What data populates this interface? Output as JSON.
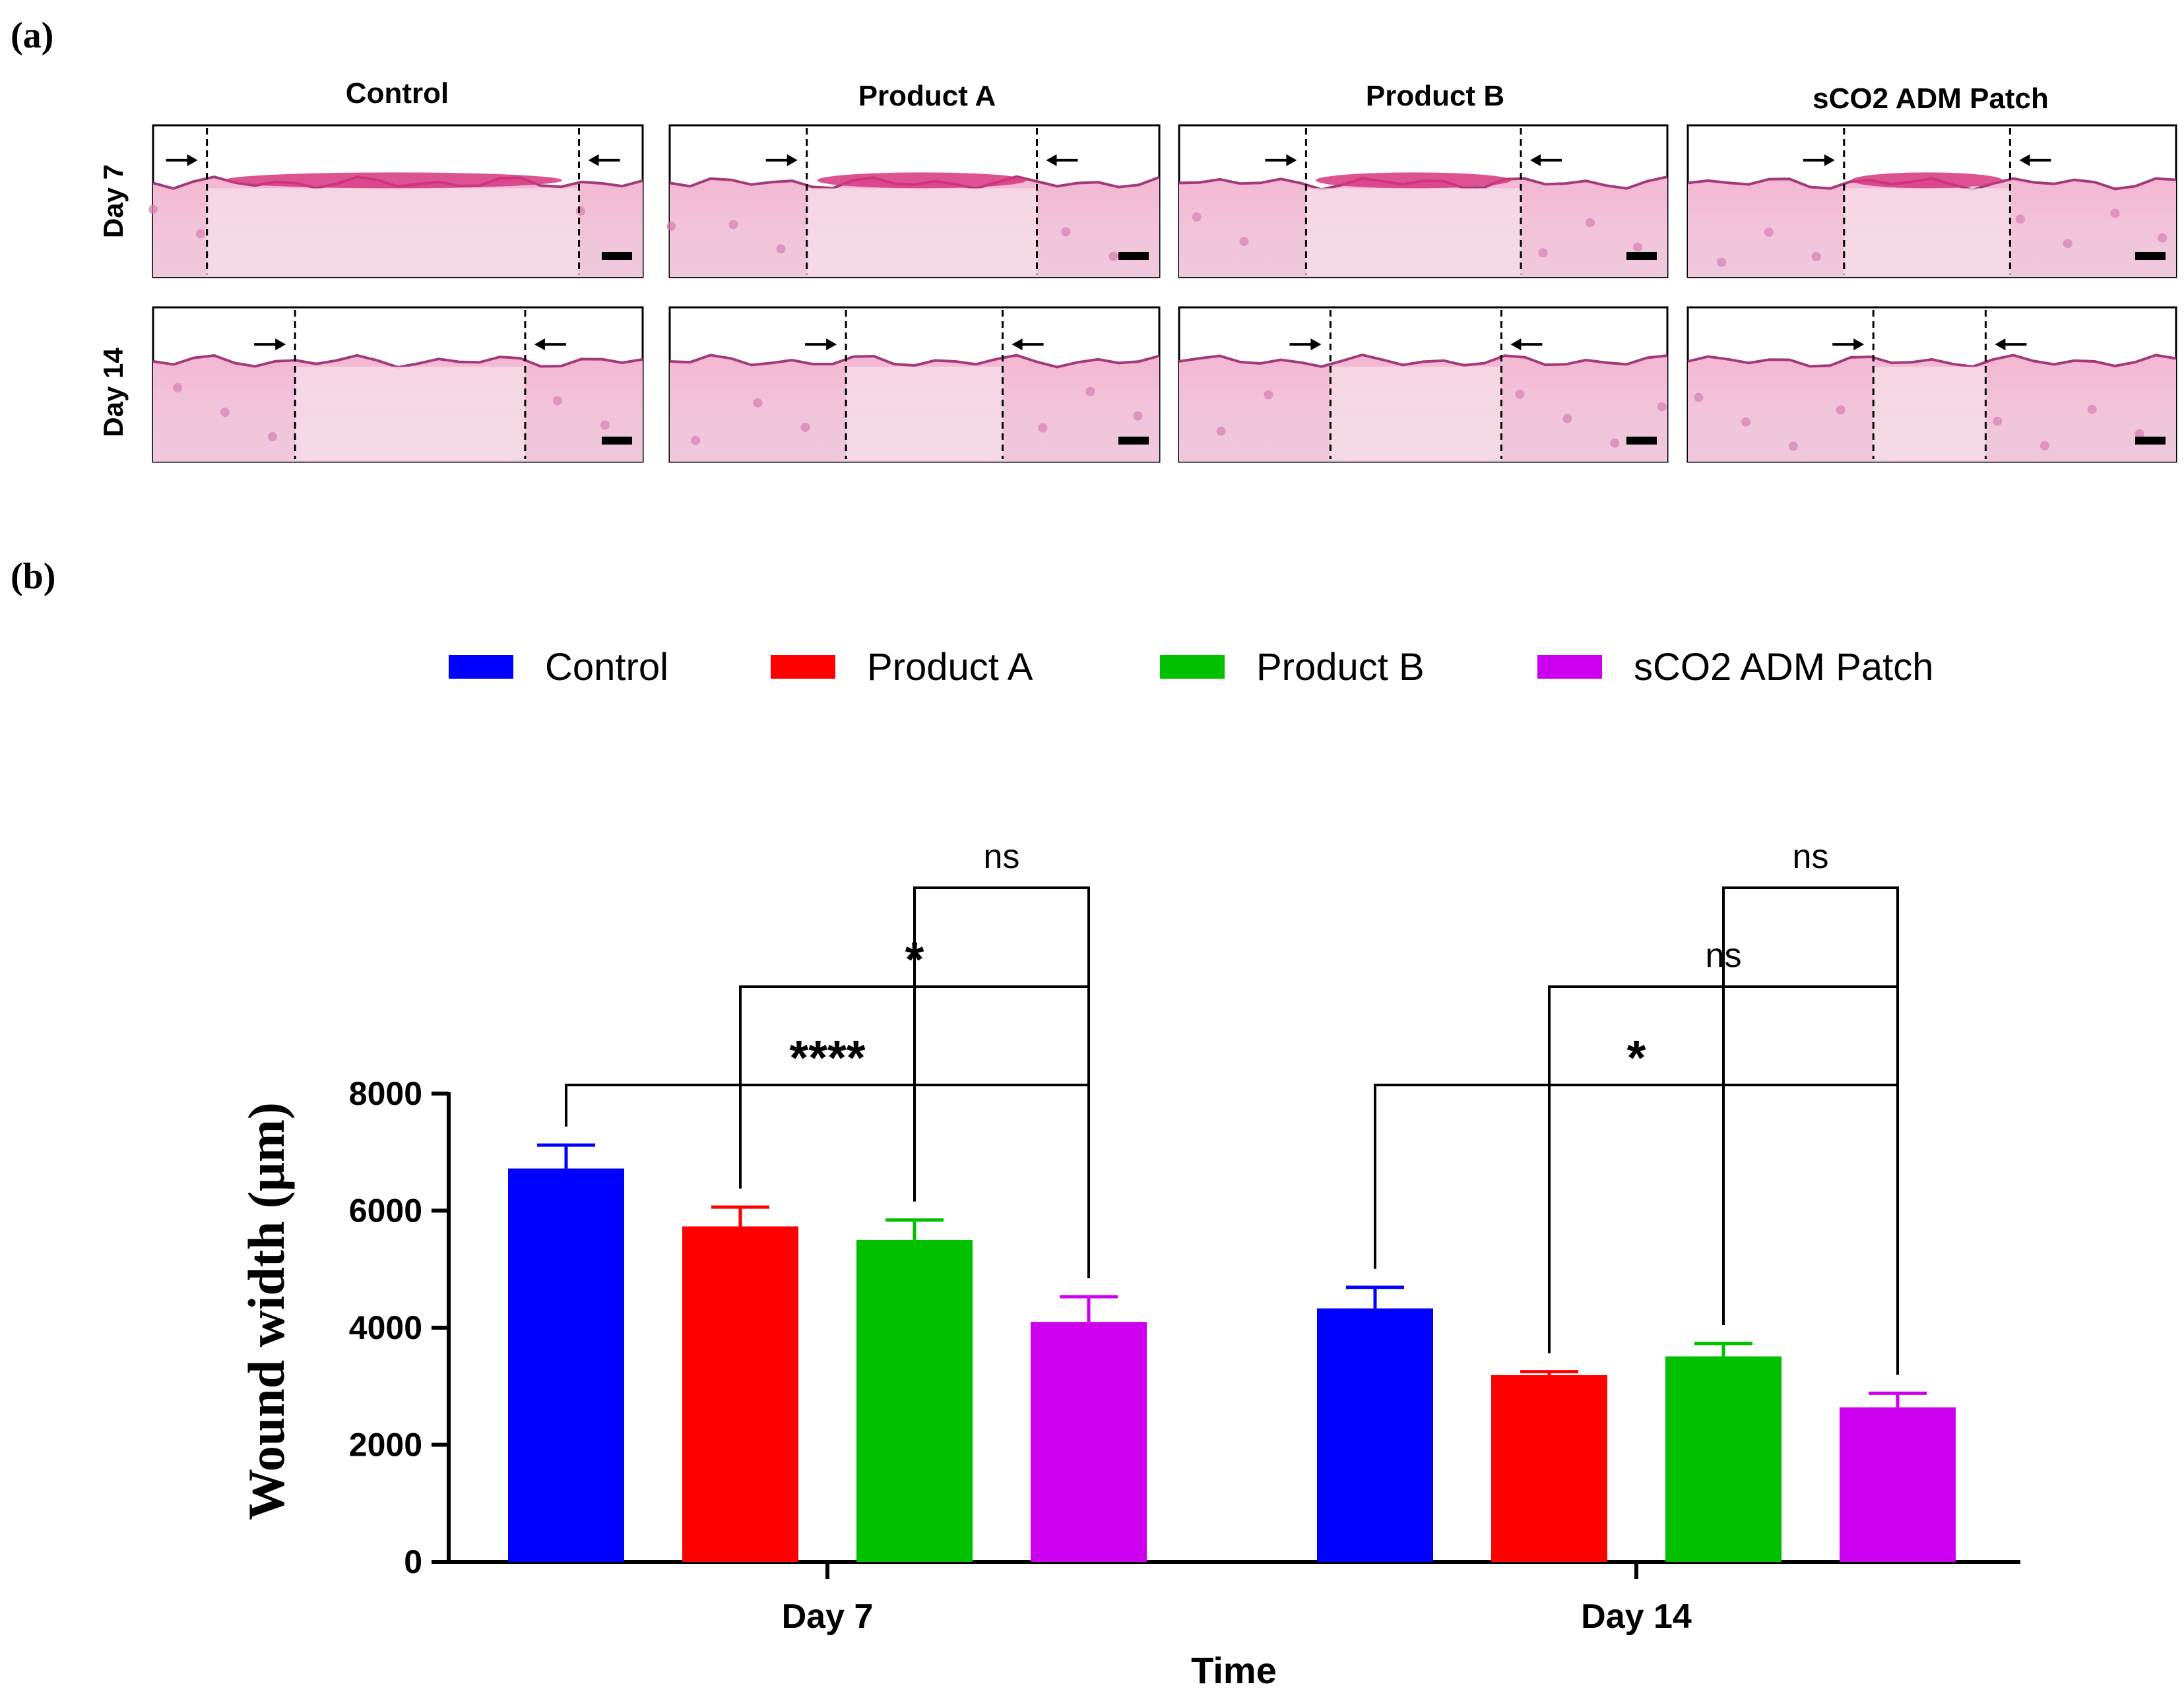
{
  "panel_a": {
    "label": "(a)",
    "columns": [
      "Control",
      "Product A",
      "Product B",
      "sCO2 ADM Patch"
    ],
    "rows": [
      "Day 7",
      "Day 14"
    ]
  },
  "panel_b": {
    "label": "(b)"
  },
  "chart_data": {
    "type": "bar",
    "xlabel": "Time",
    "ylabel": "Wound width (μm)",
    "ylim": [
      0,
      8000
    ],
    "yticks": [
      0,
      2000,
      4000,
      6000,
      8000
    ],
    "categories": [
      "Day 7",
      "Day 14"
    ],
    "legend_position": "top",
    "series": [
      {
        "name": "Control",
        "color": "#0000ff",
        "values": [
          6720,
          4330
        ],
        "errors": [
          400,
          360
        ]
      },
      {
        "name": "Product A",
        "color": "#ff0000",
        "values": [
          5730,
          3190
        ],
        "errors": [
          330,
          60
        ]
      },
      {
        "name": "Product B",
        "color": "#00c000",
        "values": [
          5500,
          3510
        ],
        "errors": [
          340,
          220
        ]
      },
      {
        "name": "sCO2 ADM Patch",
        "color": "#cc00ee",
        "values": [
          4100,
          2640
        ],
        "errors": [
          430,
          240
        ]
      }
    ],
    "significance": [
      {
        "category": "Day 7",
        "from": "Control",
        "to": "sCO2 ADM Patch",
        "label": "****"
      },
      {
        "category": "Day 7",
        "from": "Product A",
        "to": "sCO2 ADM Patch",
        "label": "*"
      },
      {
        "category": "Day 7",
        "from": "Product B",
        "to": "sCO2 ADM Patch",
        "label": "ns"
      },
      {
        "category": "Day 14",
        "from": "Control",
        "to": "sCO2 ADM Patch",
        "label": "*"
      },
      {
        "category": "Day 14",
        "from": "Product A",
        "to": "sCO2 ADM Patch",
        "label": "ns"
      },
      {
        "category": "Day 14",
        "from": "Product B",
        "to": "sCO2 ADM Patch",
        "label": "ns"
      }
    ]
  }
}
